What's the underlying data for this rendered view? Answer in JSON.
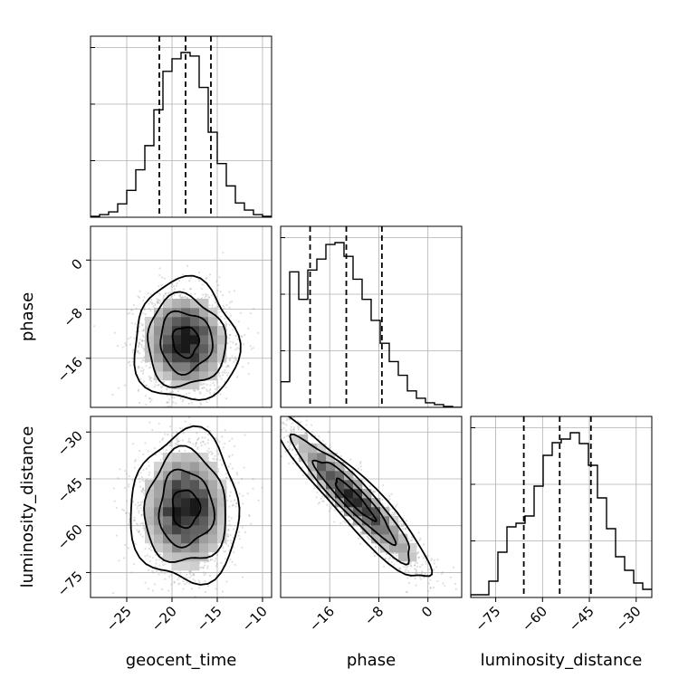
{
  "chart_data": {
    "type": "corner",
    "parameters": [
      "geocent_time",
      "phase",
      "luminosity_distance"
    ],
    "axis_labels": {
      "geocent_time": "geocent_time",
      "phase": "phase",
      "luminosity_distance": "luminosity_distance"
    },
    "grid": true,
    "ranges": {
      "geocent_time": [
        -29,
        -9
      ],
      "phase": [
        -24,
        5.5
      ],
      "luminosity_distance": [
        -83,
        -25
      ]
    },
    "ticks": {
      "geocent_time": [
        -25,
        -20,
        -15,
        -10
      ],
      "phase": [
        -16,
        -8,
        0
      ],
      "luminosity_distance": [
        -75,
        -60,
        -45,
        -30
      ]
    },
    "tick_labels": {
      "geocent_time": [
        "−25",
        "−20",
        "−15",
        "−10"
      ],
      "phase": [
        "−16",
        "−8",
        "0"
      ],
      "luminosity_distance": [
        "−75",
        "−60",
        "−45",
        "−30"
      ]
    },
    "quantiles": {
      "geocent_time": [
        -21.4,
        -18.5,
        -15.7
      ],
      "phase": [
        -19.2,
        -13.3,
        -7.5
      ],
      "luminosity_distance": [
        -66,
        -54.5,
        -44.5
      ]
    },
    "histograms": {
      "geocent_time": {
        "bins_start": -29,
        "bin_width": 1,
        "counts": [
          1,
          3,
          6,
          15,
          30,
          53,
          80,
          120,
          163,
          177,
          184,
          180,
          145,
          95,
          60,
          35,
          16,
          8,
          3,
          1
        ]
      },
      "phase": {
        "bins_start": -24,
        "bin_width": 1.475,
        "counts": [
          28,
          148,
          118,
          150,
          162,
          178,
          180,
          165,
          140,
          118,
          95,
          70,
          50,
          35,
          18,
          10,
          5,
          3,
          1,
          0
        ]
      },
      "luminosity_distance": {
        "bins_start": -83,
        "bin_width": 2.9,
        "counts": [
          3,
          3,
          18,
          50,
          78,
          82,
          90,
          123,
          157,
          171,
          175,
          182,
          170,
          146,
          110,
          76,
          45,
          30,
          16,
          9
        ]
      }
    },
    "joint_2d": {
      "phase_vs_geocent_time": {
        "mean": [
          -18.5,
          -13.3
        ],
        "sd": [
          2.5,
          4.3
        ],
        "rho": -0.03,
        "contour_levels_sigma": [
          0.5,
          1.0,
          1.5,
          2.0
        ]
      },
      "luminosity_distance_vs_geocent_time": {
        "mean": [
          -18.5,
          -54.5
        ],
        "sd": [
          2.6,
          10.5
        ],
        "rho": 0.0,
        "contour_levels_sigma": [
          0.5,
          1.0,
          1.5,
          2.0
        ]
      },
      "luminosity_distance_vs_phase": {
        "mean": [
          -12.0,
          -51.5
        ],
        "sd": [
          5.6,
          11.5
        ],
        "rho": -0.93,
        "contour_levels_sigma": [
          0.5,
          1.0,
          1.5,
          2.0
        ]
      }
    }
  }
}
